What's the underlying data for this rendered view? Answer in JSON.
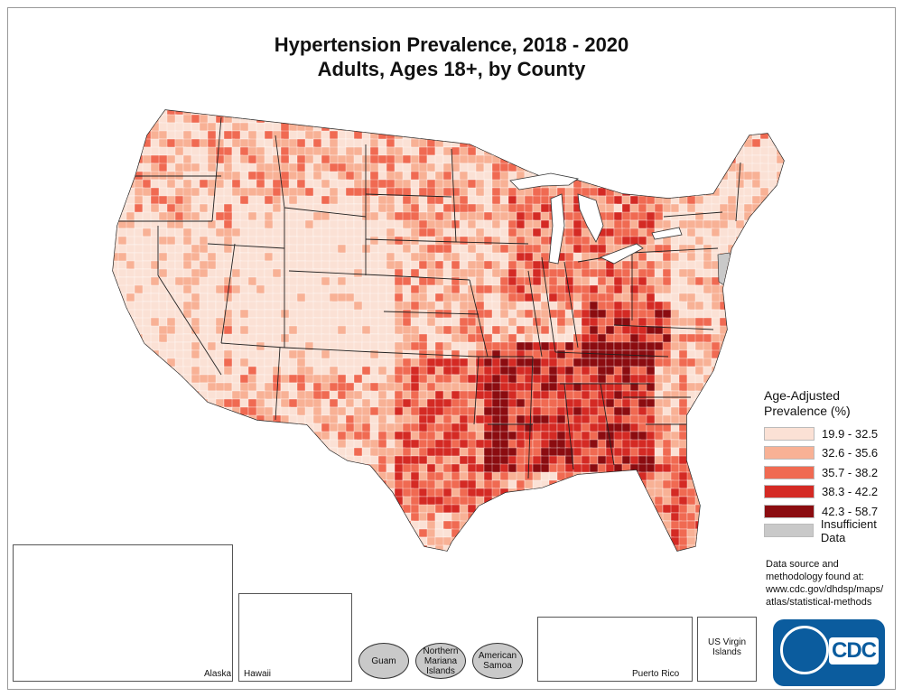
{
  "title": {
    "line1": "Hypertension Prevalence, 2018 - 2020",
    "line2": "Adults, Ages 18+, by County"
  },
  "legend": {
    "title_line1": "Age-Adjusted",
    "title_line2": "Prevalence (%)",
    "classes": [
      {
        "label": "19.9 - 32.5",
        "color": "#fbe1d5"
      },
      {
        "label": "32.6 - 35.6",
        "color": "#f8b195"
      },
      {
        "label": "35.7 - 38.2",
        "color": "#f06a52"
      },
      {
        "label": "38.3 - 42.2",
        "color": "#d42a24"
      },
      {
        "label": "42.3 - 58.7",
        "color": "#8b0c10"
      },
      {
        "label": "Insufficient Data",
        "color": "#c9c9c9"
      }
    ]
  },
  "source": {
    "line1": "Data source and",
    "line2": "methodology found at:",
    "line3": "www.cdc.gov/dhdsp/maps/",
    "line4": "atlas/statistical-methods"
  },
  "insets": {
    "alaska": "Alaska",
    "hawaii": "Hawaii",
    "guam": "Guam",
    "northern_mariana_line1": "Northern",
    "northern_mariana_line2": "Mariana",
    "northern_mariana_line3": "Islands",
    "american_samoa_line1": "American",
    "american_samoa_line2": "Samoa",
    "puerto_rico": "Puerto Rico",
    "virgin_islands_line1": "US Virgin",
    "virgin_islands_line2": "Islands"
  },
  "logo": {
    "text": "CDC",
    "brand_color": "#0b5c9e"
  },
  "map": {
    "fill_classes": [
      "#fbe1d5",
      "#f8b195",
      "#f06a52",
      "#d42a24",
      "#8b0c10",
      "#c9c9c9"
    ],
    "state_border_color": "#222222",
    "county_border_color": "#ffffff"
  }
}
